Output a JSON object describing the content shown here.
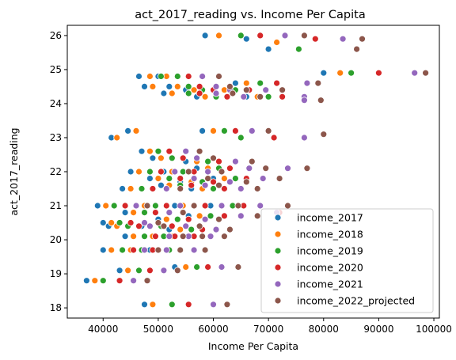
{
  "chart_data": {
    "type": "scatter",
    "title": "act_2017_reading vs. Income Per Capita",
    "xlabel": "Income Per Capita",
    "ylabel": "act_2017_reading",
    "xlim": [
      33500,
      101000
    ],
    "ylim": [
      17.7,
      26.3
    ],
    "xticks": [
      40000,
      50000,
      60000,
      70000,
      80000,
      90000,
      100000
    ],
    "yticks": [
      18,
      19,
      20,
      21,
      22,
      23,
      24,
      25,
      26
    ],
    "grid": false,
    "legend_position": "lower-right",
    "series": [
      {
        "name": "income_2017",
        "color": "#1f77b4",
        "points": [
          [
            58500,
            26
          ],
          [
            66000,
            25.9
          ],
          [
            70000,
            25.6
          ],
          [
            80000,
            24.9
          ],
          [
            46500,
            24.8
          ],
          [
            50000,
            24.8
          ],
          [
            52000,
            24.5
          ],
          [
            47500,
            24.5
          ],
          [
            55000,
            24.4
          ],
          [
            60000,
            24.4
          ],
          [
            64000,
            24.6
          ],
          [
            51000,
            24.3
          ],
          [
            66000,
            24.2
          ],
          [
            57000,
            24.2
          ],
          [
            44500,
            23.2
          ],
          [
            41500,
            23
          ],
          [
            58000,
            23.2
          ],
          [
            47000,
            22.6
          ],
          [
            49000,
            22.4
          ],
          [
            55000,
            22.3
          ],
          [
            45000,
            22
          ],
          [
            51000,
            22
          ],
          [
            57000,
            22.1
          ],
          [
            48500,
            21.8
          ],
          [
            54000,
            21.7
          ],
          [
            60000,
            21.8
          ],
          [
            43500,
            21.5
          ],
          [
            50500,
            21.6
          ],
          [
            56000,
            21.5
          ],
          [
            39000,
            21
          ],
          [
            46000,
            21
          ],
          [
            53000,
            21
          ],
          [
            59500,
            21
          ],
          [
            44000,
            20.8
          ],
          [
            50000,
            20.6
          ],
          [
            55500,
            20.7
          ],
          [
            40000,
            20.5
          ],
          [
            47000,
            20.4
          ],
          [
            52000,
            20.3
          ],
          [
            41000,
            20.4
          ],
          [
            44000,
            20.1
          ],
          [
            47500,
            20.1
          ],
          [
            51000,
            20.1
          ],
          [
            40000,
            19.7
          ],
          [
            43500,
            19.7
          ],
          [
            48500,
            19.7
          ],
          [
            53000,
            19.2
          ],
          [
            43000,
            19.1
          ],
          [
            37000,
            18.8
          ],
          [
            47500,
            18.1
          ]
        ]
      },
      {
        "name": "income_2018",
        "color": "#ff7f0e",
        "points": [
          [
            61000,
            26
          ],
          [
            71500,
            25.8
          ],
          [
            83000,
            24.9
          ],
          [
            48500,
            24.8
          ],
          [
            51500,
            24.8
          ],
          [
            53500,
            24.5
          ],
          [
            49000,
            24.5
          ],
          [
            56500,
            24.4
          ],
          [
            62000,
            24.4
          ],
          [
            66000,
            24.6
          ],
          [
            52500,
            24.3
          ],
          [
            68000,
            24.2
          ],
          [
            58500,
            24.2
          ],
          [
            46000,
            23.2
          ],
          [
            42500,
            23
          ],
          [
            60000,
            23.2
          ],
          [
            48500,
            22.6
          ],
          [
            50500,
            22.4
          ],
          [
            57000,
            22.3
          ],
          [
            46500,
            22
          ],
          [
            52500,
            22
          ],
          [
            59000,
            22.1
          ],
          [
            50000,
            21.8
          ],
          [
            56000,
            21.7
          ],
          [
            62000,
            21.8
          ],
          [
            45000,
            21.5
          ],
          [
            52000,
            21.6
          ],
          [
            58000,
            21.5
          ],
          [
            40500,
            21
          ],
          [
            47500,
            21
          ],
          [
            54500,
            21
          ],
          [
            61500,
            21
          ],
          [
            45500,
            20.8
          ],
          [
            51500,
            20.6
          ],
          [
            57500,
            20.7
          ],
          [
            41500,
            20.5
          ],
          [
            48500,
            20.4
          ],
          [
            54000,
            20.3
          ],
          [
            42500,
            20.4
          ],
          [
            45500,
            20.1
          ],
          [
            49000,
            20.1
          ],
          [
            52500,
            20.1
          ],
          [
            41500,
            19.7
          ],
          [
            45000,
            19.7
          ],
          [
            50000,
            19.7
          ],
          [
            55000,
            19.2
          ],
          [
            44500,
            19.1
          ],
          [
            38500,
            18.8
          ],
          [
            49000,
            18.1
          ]
        ]
      },
      {
        "name": "income_2019",
        "color": "#2ca02c",
        "points": [
          [
            65000,
            26
          ],
          [
            75500,
            25.6
          ],
          [
            85000,
            24.9
          ],
          [
            50500,
            24.8
          ],
          [
            53500,
            24.8
          ],
          [
            55500,
            24.5
          ],
          [
            58000,
            24.4
          ],
          [
            64000,
            24.4
          ],
          [
            68500,
            24.6
          ],
          [
            55500,
            24.3
          ],
          [
            70000,
            24.2
          ],
          [
            60500,
            24.2
          ],
          [
            65000,
            23
          ],
          [
            62000,
            23.2
          ],
          [
            50000,
            22.6
          ],
          [
            52500,
            22.4
          ],
          [
            59000,
            22.3
          ],
          [
            48500,
            22
          ],
          [
            54500,
            22
          ],
          [
            61000,
            22.1
          ],
          [
            52000,
            21.8
          ],
          [
            58000,
            21.7
          ],
          [
            64000,
            21.8
          ],
          [
            47000,
            21.5
          ],
          [
            54000,
            21.6
          ],
          [
            60000,
            21.5
          ],
          [
            42000,
            21
          ],
          [
            49500,
            21
          ],
          [
            56500,
            21
          ],
          [
            63500,
            21
          ],
          [
            47500,
            20.8
          ],
          [
            53500,
            20.6
          ],
          [
            59500,
            20.7
          ],
          [
            43000,
            20.5
          ],
          [
            50500,
            20.4
          ],
          [
            56000,
            20.3
          ],
          [
            44500,
            20.4
          ],
          [
            47500,
            20.1
          ],
          [
            51000,
            20.1
          ],
          [
            54500,
            20.1
          ],
          [
            43500,
            19.7
          ],
          [
            47000,
            19.7
          ],
          [
            52000,
            19.7
          ],
          [
            57000,
            19.2
          ],
          [
            46500,
            19.1
          ],
          [
            40000,
            18.8
          ],
          [
            52500,
            18.1
          ]
        ]
      },
      {
        "name": "income_2020",
        "color": "#d62728",
        "points": [
          [
            68500,
            26
          ],
          [
            78500,
            25.9
          ],
          [
            90000,
            24.9
          ],
          [
            55500,
            24.8
          ],
          [
            57500,
            24.5
          ],
          [
            60000,
            24.4
          ],
          [
            66500,
            24.4
          ],
          [
            71500,
            24.6
          ],
          [
            57500,
            24.3
          ],
          [
            72500,
            24.2
          ],
          [
            62500,
            24.2
          ],
          [
            71000,
            23
          ],
          [
            64000,
            23.2
          ],
          [
            52000,
            22.6
          ],
          [
            54500,
            22.4
          ],
          [
            61000,
            22.3
          ],
          [
            50500,
            22
          ],
          [
            56500,
            22
          ],
          [
            63000,
            22.1
          ],
          [
            54000,
            21.8
          ],
          [
            60000,
            21.7
          ],
          [
            66000,
            21.8
          ],
          [
            49000,
            21.5
          ],
          [
            56000,
            21.6
          ],
          [
            62000,
            21.5
          ],
          [
            44000,
            21
          ],
          [
            51500,
            21
          ],
          [
            58500,
            21
          ],
          [
            65500,
            21
          ],
          [
            49500,
            20.8
          ],
          [
            55500,
            20.6
          ],
          [
            62000,
            20.7
          ],
          [
            45000,
            20.5
          ],
          [
            52500,
            20.4
          ],
          [
            58000,
            20.3
          ],
          [
            46500,
            20.4
          ],
          [
            49500,
            20.1
          ],
          [
            53000,
            20.1
          ],
          [
            56500,
            20.1
          ],
          [
            45500,
            19.7
          ],
          [
            49000,
            19.7
          ],
          [
            54000,
            19.7
          ],
          [
            59000,
            19.2
          ],
          [
            48500,
            19.1
          ],
          [
            43000,
            18.8
          ],
          [
            55500,
            18.1
          ],
          [
            72000,
            20.8
          ]
        ]
      },
      {
        "name": "income_2021",
        "color": "#9467bd",
        "points": [
          [
            73000,
            26
          ],
          [
            83500,
            25.9
          ],
          [
            96500,
            24.9
          ],
          [
            58000,
            24.8
          ],
          [
            60500,
            24.5
          ],
          [
            63000,
            24.4
          ],
          [
            69500,
            24.4
          ],
          [
            77000,
            24.6
          ],
          [
            60500,
            24.3
          ],
          [
            76500,
            24.2
          ],
          [
            65500,
            24.2
          ],
          [
            76500,
            23
          ],
          [
            67000,
            23.2
          ],
          [
            55000,
            22.6
          ],
          [
            57000,
            22.4
          ],
          [
            64000,
            22.3
          ],
          [
            53000,
            22
          ],
          [
            59000,
            22
          ],
          [
            66500,
            22.1
          ],
          [
            56500,
            21.8
          ],
          [
            63000,
            21.7
          ],
          [
            69000,
            21.8
          ],
          [
            51500,
            21.5
          ],
          [
            58500,
            21.6
          ],
          [
            65000,
            21.5
          ],
          [
            46000,
            21
          ],
          [
            54000,
            21
          ],
          [
            61500,
            21
          ],
          [
            68500,
            21
          ],
          [
            52000,
            20.8
          ],
          [
            58500,
            20.6
          ],
          [
            65000,
            20.7
          ],
          [
            47500,
            20.5
          ],
          [
            55000,
            20.4
          ],
          [
            60500,
            20.3
          ],
          [
            48500,
            20.4
          ],
          [
            52000,
            20.1
          ],
          [
            55500,
            20.1
          ],
          [
            59500,
            20.1
          ],
          [
            47500,
            19.7
          ],
          [
            51500,
            19.7
          ],
          [
            56500,
            19.7
          ],
          [
            61500,
            19.2
          ],
          [
            51000,
            19.1
          ],
          [
            45500,
            18.8
          ],
          [
            60000,
            18.1
          ],
          [
            73500,
            22.1
          ],
          [
            71500,
            20.8
          ],
          [
            76500,
            24.1
          ]
        ]
      },
      {
        "name": "income_2022_projected",
        "color": "#8c564b",
        "points": [
          [
            76500,
            26
          ],
          [
            87000,
            25.9
          ],
          [
            98500,
            24.9
          ],
          [
            61000,
            24.8
          ],
          [
            63000,
            24.5
          ],
          [
            66000,
            24.4
          ],
          [
            72500,
            24.4
          ],
          [
            79000,
            24.6
          ],
          [
            63500,
            24.3
          ],
          [
            79500,
            24.1
          ],
          [
            68500,
            24.2
          ],
          [
            80000,
            23.1
          ],
          [
            70000,
            23.2
          ],
          [
            57500,
            22.6
          ],
          [
            60000,
            22.4
          ],
          [
            67000,
            22.3
          ],
          [
            55500,
            22
          ],
          [
            61500,
            22
          ],
          [
            69500,
            22.1
          ],
          [
            59000,
            21.8
          ],
          [
            66000,
            21.7
          ],
          [
            72000,
            21.8
          ],
          [
            54000,
            21.5
          ],
          [
            61000,
            21.6
          ],
          [
            68000,
            21.5
          ],
          [
            48000,
            21
          ],
          [
            56500,
            21
          ],
          [
            64500,
            21
          ],
          [
            73500,
            21
          ],
          [
            54500,
            20.8
          ],
          [
            61000,
            20.6
          ],
          [
            68000,
            20.7
          ],
          [
            50000,
            20.5
          ],
          [
            57500,
            20.4
          ],
          [
            63000,
            20.3
          ],
          [
            51000,
            20.4
          ],
          [
            54500,
            20.1
          ],
          [
            58000,
            20.1
          ],
          [
            62000,
            20.1
          ],
          [
            50000,
            19.7
          ],
          [
            54000,
            19.7
          ],
          [
            58500,
            19.7
          ],
          [
            64500,
            19.2
          ],
          [
            53500,
            19.1
          ],
          [
            48000,
            18.8
          ],
          [
            62500,
            18.1
          ],
          [
            86000,
            25.6
          ],
          [
            77000,
            22.1
          ]
        ]
      }
    ]
  }
}
